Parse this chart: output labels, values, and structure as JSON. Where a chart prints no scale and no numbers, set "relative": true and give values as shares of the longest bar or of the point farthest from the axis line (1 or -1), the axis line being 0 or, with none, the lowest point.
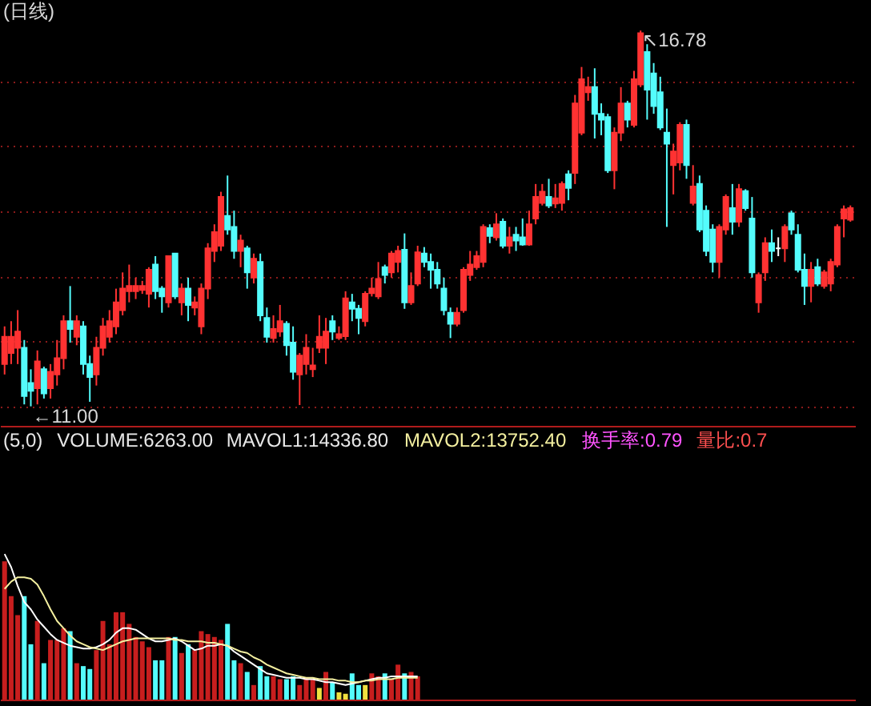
{
  "chart_data": [
    {
      "type": "candlestick",
      "title": "(日线)",
      "categories": [
        null,
        null,
        null,
        null,
        null,
        null,
        null,
        null,
        null,
        null,
        null,
        null,
        null,
        null,
        null,
        null,
        null,
        null,
        null,
        null,
        null,
        null,
        null,
        null,
        null,
        null,
        null,
        null,
        null,
        null,
        null,
        null,
        null,
        null,
        null,
        null,
        null,
        null,
        null,
        null,
        null,
        null,
        null,
        null,
        null,
        null,
        null,
        null,
        null,
        null,
        null,
        null,
        null,
        null,
        null,
        null,
        null,
        null,
        null,
        null,
        null,
        null,
        null,
        null,
        null,
        null,
        null,
        null,
        null,
        null,
        null,
        null,
        null,
        null,
        null,
        null,
        null,
        null,
        null,
        null,
        null,
        null,
        null,
        null,
        null,
        null,
        null,
        null,
        null,
        null,
        null,
        null,
        null,
        null,
        null,
        null,
        null,
        null,
        null,
        null,
        null,
        null,
        null,
        null,
        null,
        null,
        null,
        null,
        null,
        null,
        null,
        null,
        null,
        null,
        null,
        null,
        null,
        null,
        null,
        null,
        null,
        null,
        null,
        null,
        null,
        null,
        null,
        null,
        null,
        null
      ],
      "ohlc": [
        [
          11.65,
          12.23,
          11.49,
          12.07
        ],
        [
          11.82,
          12.31,
          11.65,
          12.07
        ],
        [
          11.9,
          12.48,
          11.65,
          12.15
        ],
        [
          11.9,
          12.02,
          11.03,
          11.16
        ],
        [
          11.36,
          11.57,
          11.0,
          11.24
        ],
        [
          11.28,
          11.86,
          11.03,
          11.69
        ],
        [
          11.57,
          11.61,
          11.12,
          11.2
        ],
        [
          11.28,
          11.65,
          11.12,
          11.53
        ],
        [
          11.49,
          12.02,
          11.32,
          11.74
        ],
        [
          11.74,
          12.4,
          11.57,
          12.31
        ],
        [
          12.31,
          12.85,
          11.98,
          12.19
        ],
        [
          12.07,
          12.4,
          11.94,
          12.31
        ],
        [
          12.23,
          12.31,
          11.49,
          11.65
        ],
        [
          11.65,
          11.78,
          11.07,
          11.45
        ],
        [
          11.49,
          12.07,
          11.32,
          11.9
        ],
        [
          11.9,
          12.36,
          11.78,
          12.23
        ],
        [
          12.07,
          12.48,
          11.98,
          12.31
        ],
        [
          12.23,
          12.81,
          12.11,
          12.6
        ],
        [
          12.48,
          13.06,
          12.4,
          12.81
        ],
        [
          12.77,
          13.18,
          12.6,
          12.85
        ],
        [
          12.77,
          12.98,
          12.65,
          12.85
        ],
        [
          12.79,
          12.93,
          12.73,
          12.85
        ],
        [
          12.73,
          13.14,
          12.52,
          13.1
        ],
        [
          13.18,
          13.31,
          12.65,
          12.77
        ],
        [
          12.81,
          12.85,
          12.44,
          12.69
        ],
        [
          12.6,
          13.31,
          12.52,
          13.31
        ],
        [
          13.35,
          13.35,
          12.65,
          12.69
        ],
        [
          12.6,
          12.89,
          12.4,
          12.81
        ],
        [
          12.81,
          12.98,
          12.31,
          12.56
        ],
        [
          12.52,
          12.69,
          12.4,
          12.6
        ],
        [
          12.23,
          12.89,
          12.11,
          12.81
        ],
        [
          12.81,
          13.51,
          12.65,
          13.43
        ],
        [
          13.39,
          13.8,
          13.22,
          13.68
        ],
        [
          13.47,
          14.3,
          13.39,
          14.22
        ],
        [
          13.93,
          14.55,
          13.64,
          13.72
        ],
        [
          13.76,
          14.01,
          13.27,
          13.39
        ],
        [
          13.39,
          13.64,
          13.14,
          13.55
        ],
        [
          13.43,
          13.47,
          12.81,
          13.06
        ],
        [
          12.98,
          13.35,
          12.89,
          13.27
        ],
        [
          13.22,
          13.35,
          12.31,
          12.4
        ],
        [
          12.36,
          12.52,
          11.98,
          12.07
        ],
        [
          12.05,
          12.4,
          11.98,
          12.19
        ],
        [
          12.15,
          12.56,
          12.07,
          12.31
        ],
        [
          12.27,
          12.31,
          11.78,
          11.94
        ],
        [
          11.98,
          12.23,
          11.41,
          11.53
        ],
        [
          11.49,
          11.82,
          11.02,
          11.78
        ],
        [
          11.65,
          12.11,
          11.49,
          11.9
        ],
        [
          11.57,
          11.9,
          11.45,
          11.63
        ],
        [
          11.9,
          12.4,
          11.82,
          12.07
        ],
        [
          11.9,
          12.36,
          11.65,
          12.15
        ],
        [
          12.31,
          12.4,
          12.02,
          12.15
        ],
        [
          12.05,
          12.23,
          12.02,
          12.11
        ],
        [
          12.08,
          12.77,
          12.02,
          12.66
        ],
        [
          12.6,
          12.73,
          12.31,
          12.5
        ],
        [
          12.5,
          12.56,
          12.11,
          12.36
        ],
        [
          12.31,
          12.77,
          12.23,
          12.73
        ],
        [
          12.74,
          12.98,
          12.69,
          12.81
        ],
        [
          12.69,
          13.22,
          12.65,
          12.96
        ],
        [
          13.14,
          13.18,
          12.89,
          13.02
        ],
        [
          13.06,
          13.39,
          12.98,
          13.35
        ],
        [
          13.22,
          13.47,
          13.06,
          13.39
        ],
        [
          13.41,
          13.66,
          12.5,
          12.6
        ],
        [
          12.6,
          13.06,
          12.56,
          12.85
        ],
        [
          12.89,
          13.47,
          12.85,
          13.37
        ],
        [
          13.35,
          13.45,
          13.14,
          13.22
        ],
        [
          13.22,
          13.35,
          12.81,
          13.1
        ],
        [
          13.1,
          13.22,
          12.81,
          12.89
        ],
        [
          12.81,
          12.98,
          12.4,
          12.48
        ],
        [
          12.44,
          12.52,
          12.05,
          12.27
        ],
        [
          12.27,
          12.52,
          12.23,
          12.44
        ],
        [
          12.48,
          13.14,
          12.44,
          13.1
        ],
        [
          13.02,
          13.39,
          12.93,
          13.18
        ],
        [
          13.14,
          13.39,
          13.1,
          13.31
        ],
        [
          13.22,
          13.8,
          13.14,
          13.76
        ],
        [
          13.74,
          13.8,
          13.51,
          13.62
        ],
        [
          13.6,
          13.97,
          13.55,
          13.8
        ],
        [
          13.84,
          13.89,
          13.43,
          13.47
        ],
        [
          13.47,
          13.76,
          13.35,
          13.6
        ],
        [
          13.64,
          13.76,
          13.39,
          13.55
        ],
        [
          13.6,
          13.89,
          13.47,
          13.49
        ],
        [
          13.49,
          14.01,
          13.47,
          13.8
        ],
        [
          13.89,
          14.42,
          13.8,
          14.22
        ],
        [
          14.13,
          14.42,
          14.09,
          14.3
        ],
        [
          14.22,
          14.5,
          14.05,
          14.09
        ],
        [
          14.12,
          14.42,
          14.05,
          14.2
        ],
        [
          14.13,
          14.46,
          14.01,
          14.42
        ],
        [
          14.57,
          14.63,
          14.17,
          14.36
        ],
        [
          14.59,
          15.79,
          14.42,
          15.66
        ],
        [
          15.21,
          16.22,
          15.17,
          16.03
        ],
        [
          15.83,
          16.07,
          15.7,
          15.91
        ],
        [
          15.91,
          16.2,
          15.12,
          15.5
        ],
        [
          15.5,
          15.66,
          15.17,
          15.41
        ],
        [
          15.45,
          15.5,
          14.59,
          14.63
        ],
        [
          14.63,
          15.29,
          14.34,
          15.21
        ],
        [
          15.21,
          15.91,
          15.08,
          15.66
        ],
        [
          15.66,
          15.7,
          15.29,
          15.41
        ],
        [
          15.33,
          16.16,
          15.29,
          16.03
        ],
        [
          15.95,
          16.78,
          15.91,
          16.74
        ],
        [
          16.45,
          16.57,
          15.41,
          15.87
        ],
        [
          16.12,
          16.28,
          15.5,
          15.62
        ],
        [
          15.83,
          16.07,
          15.25,
          15.29
        ],
        [
          15.21,
          15.58,
          13.76,
          15.04
        ],
        [
          14.71,
          15.04,
          14.26,
          14.92
        ],
        [
          14.75,
          15.37,
          14.63,
          15.33
        ],
        [
          15.33,
          15.41,
          14.5,
          14.71
        ],
        [
          14.13,
          14.71,
          14.09,
          14.38
        ],
        [
          14.42,
          14.55,
          13.68,
          13.72
        ],
        [
          14.01,
          14.09,
          13.31,
          13.39
        ],
        [
          13.72,
          13.8,
          13.06,
          13.22
        ],
        [
          13.22,
          13.8,
          12.98,
          13.76
        ],
        [
          13.72,
          14.26,
          13.64,
          14.22
        ],
        [
          14.05,
          14.42,
          13.64,
          13.84
        ],
        [
          13.84,
          14.42,
          13.76,
          14.34
        ],
        [
          14.31,
          14.34,
          14.01,
          14.05
        ],
        [
          13.89,
          14.22,
          12.98,
          13.06
        ],
        [
          12.6,
          13.06,
          12.44,
          13.02
        ],
        [
          13.06,
          13.6,
          12.93,
          13.51
        ],
        [
          13.51,
          13.72,
          13.22,
          13.39
        ],
        [
          13.43,
          13.6,
          13.31,
          13.43
        ],
        [
          13.43,
          13.8,
          13.22,
          13.76
        ],
        [
          13.97,
          14.01,
          13.64,
          13.72
        ],
        [
          13.64,
          13.8,
          13.06,
          13.1
        ],
        [
          13.1,
          13.35,
          12.56,
          12.85
        ],
        [
          12.85,
          13.22,
          12.6,
          13.1
        ],
        [
          13.14,
          13.27,
          12.85,
          12.89
        ],
        [
          12.85,
          13.1,
          12.81,
          13.06
        ],
        [
          12.89,
          13.27,
          12.77,
          13.22
        ],
        [
          13.18,
          13.8,
          13.14,
          13.76
        ],
        [
          13.89,
          14.09,
          13.6,
          14.03
        ],
        [
          13.87,
          14.09,
          13.84,
          14.05
        ]
      ],
      "colors": [
        "#ff3232",
        "#ff3232",
        "#ff3232",
        "#54fcfc",
        "#54fcfc",
        "#ff3232",
        "#54fcfc",
        "#ff3232",
        "#ff3232",
        "#ff3232",
        "#54fcfc",
        "#ff3232",
        "#54fcfc",
        "#54fcfc",
        "#ff3232",
        "#ff3232",
        "#ff3232",
        "#ff3232",
        "#ff3232",
        "#ff3232",
        "#ff3232",
        "#ff3232",
        "#ff3232",
        "#54fcfc",
        "#54fcfc",
        "#ff3232",
        "#54fcfc",
        "#ff3232",
        "#54fcfc",
        "#ff3232",
        "#ff3232",
        "#ff3232",
        "#ff3232",
        "#ff3232",
        "#54fcfc",
        "#54fcfc",
        "#ff3232",
        "#54fcfc",
        "#ff3232",
        "#54fcfc",
        "#54fcfc",
        "#ff3232",
        "#ff3232",
        "#54fcfc",
        "#54fcfc",
        "#ff3232",
        "#ff3232",
        "#ff3232",
        "#ff3232",
        "#ff3232",
        "#54fcfc",
        "#ff3232",
        "#ff3232",
        "#54fcfc",
        "#54fcfc",
        "#ff3232",
        "#ff3232",
        "#ff3232",
        "#54fcfc",
        "#ff3232",
        "#ff3232",
        "#54fcfc",
        "#ff3232",
        "#ff3232",
        "#54fcfc",
        "#54fcfc",
        "#54fcfc",
        "#54fcfc",
        "#54fcfc",
        "#ff3232",
        "#ff3232",
        "#ff3232",
        "#ff3232",
        "#ff3232",
        "#54fcfc",
        "#ff3232",
        "#54fcfc",
        "#ff3232",
        "#54fcfc",
        "#54fcfc",
        "#ff3232",
        "#ff3232",
        "#ff3232",
        "#54fcfc",
        "#ff3232",
        "#ff3232",
        "#54fcfc",
        "#ff3232",
        "#ff3232",
        "#ff3232",
        "#54fcfc",
        "#54fcfc",
        "#54fcfc",
        "#ff3232",
        "#ff3232",
        "#54fcfc",
        "#ff3232",
        "#ff3232",
        "#54fcfc",
        "#54fcfc",
        "#54fcfc",
        "#54fcfc",
        "#ff3232",
        "#ff3232",
        "#54fcfc",
        "#ff3232",
        "#54fcfc",
        "#54fcfc",
        "#54fcfc",
        "#ff3232",
        "#ff3232",
        "#54fcfc",
        "#ff3232",
        "#54fcfc",
        "#54fcfc",
        "#ff3232",
        "#ff3232",
        "#54fcfc",
        "#ffffff",
        "#ff3232",
        "#54fcfc",
        "#54fcfc",
        "#54fcfc",
        "#ff3232",
        "#54fcfc",
        "#ff3232",
        "#ff3232",
        "#ff3232",
        "#ff3232",
        "#ff3232"
      ],
      "ylim": [
        10.7,
        17.25
      ],
      "yticks": [
        {
          "value": 11,
          "label": null
        },
        {
          "value": 12,
          "label": null
        },
        {
          "value": 13,
          "label": null
        },
        {
          "value": 14,
          "label": null
        },
        {
          "value": 15,
          "label": null
        },
        {
          "value": 16,
          "label": null
        }
      ],
      "grid": "y",
      "tick_labels": false,
      "annotations": [
        "←11.00",
        "↖16.78"
      ]
    },
    {
      "type": "bar",
      "relative": true,
      "tick_labels": false,
      "categories": [
        null,
        null,
        null,
        null,
        null,
        null,
        null,
        null,
        null,
        null,
        null,
        null,
        null,
        null,
        null,
        null,
        null,
        null,
        null,
        null,
        null,
        null,
        null,
        null,
        null,
        null,
        null,
        null,
        null,
        null,
        null,
        null,
        null,
        null,
        null,
        null,
        null,
        null,
        null,
        null,
        null,
        null,
        null,
        null,
        null,
        null,
        null,
        null,
        null,
        null,
        null,
        null,
        null,
        null,
        null,
        null,
        null,
        null,
        null,
        null,
        null,
        null,
        null,
        null,
        null,
        null,
        null,
        null,
        null,
        null,
        null,
        null,
        null,
        null,
        null,
        null,
        null,
        null,
        null,
        null,
        null,
        null,
        null,
        null,
        null,
        null,
        null,
        null,
        null,
        null,
        null,
        null,
        null,
        null,
        null,
        null,
        null,
        null,
        null,
        null,
        null,
        null,
        null,
        null,
        null,
        null,
        null,
        null,
        null,
        null,
        null,
        null,
        null,
        null,
        null,
        null,
        null,
        null,
        null,
        null,
        null,
        null,
        null,
        null,
        null,
        null,
        null,
        null,
        null,
        null
      ],
      "series": [
        {
          "type": "bar",
          "values": [
            0.95,
            0.71,
            0.58,
            0.71,
            0.38,
            0.54,
            0.25,
            0.41,
            0.41,
            0.49,
            0.47,
            0.25,
            0.23,
            0.21,
            0.34,
            0.54,
            0.38,
            0.6,
            0.6,
            0.52,
            0.43,
            0.4,
            0.36,
            0.27,
            0.27,
            0.43,
            0.43,
            0.32,
            0.38,
            0.34,
            0.47,
            0.45,
            0.43,
            0.41,
            0.52,
            0.27,
            0.25,
            0.19,
            0.1,
            0.23,
            0.16,
            0.16,
            0.14,
            0.14,
            0.16,
            0.1,
            0.15,
            0.14,
            0.08,
            0.19,
            0.12,
            0.05,
            0.04,
            0.18,
            0.1,
            0.1,
            0.18,
            0.16,
            0.18,
            0.14,
            0.24,
            0.18,
            0.19,
            0.16,
            null,
            null,
            null,
            null,
            null,
            null,
            null,
            null,
            null,
            null,
            null,
            null,
            null,
            null,
            null,
            null,
            null,
            null,
            null,
            null,
            null,
            null,
            null,
            null,
            null,
            null,
            null,
            null,
            null,
            null,
            null,
            null,
            null,
            null,
            null,
            null,
            null,
            null,
            null,
            null,
            null,
            null,
            null,
            null,
            null,
            null,
            null,
            null,
            null,
            null,
            null,
            null,
            null,
            null,
            null,
            null,
            null,
            null,
            null,
            null,
            null,
            null,
            null,
            null,
            null,
            null
          ],
          "colors": [
            "#c81e1e",
            "#c81e1e",
            "#c81e1e",
            "#54fcfc",
            "#54fcfc",
            "#c81e1e",
            "#54fcfc",
            "#c81e1e",
            "#c81e1e",
            "#c81e1e",
            "#54fcfc",
            "#c81e1e",
            "#54fcfc",
            "#54fcfc",
            "#c81e1e",
            "#c81e1e",
            "#c81e1e",
            "#c81e1e",
            "#c81e1e",
            "#c81e1e",
            "#c81e1e",
            "#c81e1e",
            "#c81e1e",
            "#54fcfc",
            "#54fcfc",
            "#c81e1e",
            "#54fcfc",
            "#c81e1e",
            "#54fcfc",
            "#c81e1e",
            "#c81e1e",
            "#c81e1e",
            "#c81e1e",
            "#c81e1e",
            "#54fcfc",
            "#54fcfc",
            "#c81e1e",
            "#54fcfc",
            "#c81e1e",
            "#54fcfc",
            "#54fcfc",
            "#c81e1e",
            "#c81e1e",
            "#54fcfc",
            "#54fcfc",
            "#c81e1e",
            "#c81e1e",
            "#c81e1e",
            "#f0e040",
            "#c81e1e",
            "#54fcfc",
            "#f0e040",
            "#f0e040",
            "#54fcfc",
            "#54fcfc",
            "#f0e040",
            "#c81e1e",
            "#c81e1e",
            "#54fcfc",
            "#c81e1e",
            "#c81e1e",
            "#54fcfc",
            "#c81e1e",
            "#c81e1e",
            null,
            null,
            null,
            null,
            null,
            null,
            null,
            null,
            null,
            null,
            null,
            null,
            null,
            null,
            null,
            null,
            null,
            null,
            null,
            null,
            null,
            null,
            null,
            null,
            null,
            null,
            null,
            null,
            null,
            null,
            null,
            null,
            null,
            null,
            null,
            null,
            null,
            null,
            null,
            null,
            null,
            null,
            null,
            null,
            null,
            null,
            null,
            null,
            null,
            null,
            null,
            null,
            null,
            null,
            null,
            null,
            null,
            null,
            null,
            null,
            null,
            null,
            null,
            null,
            null,
            null
          ]
        },
        {
          "type": "line",
          "color": "#ffffff",
          "values": [
            1.0,
            0.91,
            0.78,
            0.67,
            0.62,
            0.55,
            0.5,
            0.45,
            0.41,
            0.39,
            0.37,
            0.36,
            0.35,
            0.35,
            0.36,
            0.38,
            0.41,
            0.46,
            0.49,
            0.49,
            0.48,
            0.45,
            0.42,
            0.4,
            0.4,
            0.41,
            0.42,
            0.4,
            0.37,
            0.34,
            0.35,
            0.37,
            0.37,
            0.38,
            0.37,
            0.33,
            0.3,
            0.27,
            0.24,
            0.21,
            0.18,
            0.17,
            0.16,
            0.15,
            0.15,
            0.15,
            0.14,
            0.14,
            0.13,
            0.12,
            0.12,
            0.11,
            0.1,
            0.11,
            0.12,
            0.13,
            0.14,
            0.15,
            0.15,
            0.16,
            0.16,
            0.16,
            0.16,
            0.16,
            null,
            null,
            null,
            null,
            null,
            null,
            null,
            null,
            null,
            null,
            null,
            null,
            null,
            null,
            null,
            null,
            null,
            null,
            null,
            null,
            null,
            null,
            null,
            null,
            null,
            null,
            null,
            null,
            null,
            null,
            null,
            null,
            null,
            null,
            null,
            null,
            null,
            null,
            null,
            null,
            null,
            null,
            null,
            null,
            null,
            null,
            null,
            null,
            null,
            null,
            null,
            null,
            null,
            null,
            null,
            null,
            null,
            null,
            null,
            null,
            null,
            null,
            null,
            null,
            null,
            null
          ]
        },
        {
          "type": "line",
          "color": "#f4f0a0",
          "values": [
            0.76,
            0.81,
            0.84,
            0.84,
            0.83,
            0.79,
            0.71,
            0.62,
            0.54,
            0.49,
            0.44,
            0.4,
            0.38,
            0.36,
            0.35,
            0.34,
            0.36,
            0.38,
            0.4,
            0.41,
            0.42,
            0.42,
            0.42,
            0.42,
            0.42,
            0.42,
            0.41,
            0.41,
            0.4,
            0.4,
            0.4,
            0.39,
            0.39,
            0.38,
            0.37,
            0.35,
            0.33,
            0.32,
            0.29,
            0.27,
            0.24,
            0.22,
            0.2,
            0.18,
            0.17,
            0.16,
            0.15,
            0.15,
            0.14,
            0.14,
            0.14,
            0.13,
            0.13,
            0.12,
            0.12,
            0.13,
            0.13,
            0.14,
            0.14,
            0.14,
            0.15,
            0.15,
            0.15,
            0.15,
            null,
            null,
            null,
            null,
            null,
            null,
            null,
            null,
            null,
            null,
            null,
            null,
            null,
            null,
            null,
            null,
            null,
            null,
            null,
            null,
            null,
            null,
            null,
            null,
            null,
            null,
            null,
            null,
            null,
            null,
            null,
            null,
            null,
            null,
            null,
            null,
            null,
            null,
            null,
            null,
            null,
            null,
            null,
            null,
            null,
            null,
            null,
            null,
            null,
            null,
            null,
            null,
            null,
            null,
            null,
            null,
            null,
            null,
            null,
            null,
            null,
            null,
            null,
            null,
            null,
            null
          ]
        }
      ],
      "annotations": [
        "(5,0)",
        "VOLUME:6263.00",
        "MAVOL1:14336.80",
        "MAVOL2:13752.40",
        "换手率:0.79",
        "量比:0.7"
      ]
    }
  ]
}
